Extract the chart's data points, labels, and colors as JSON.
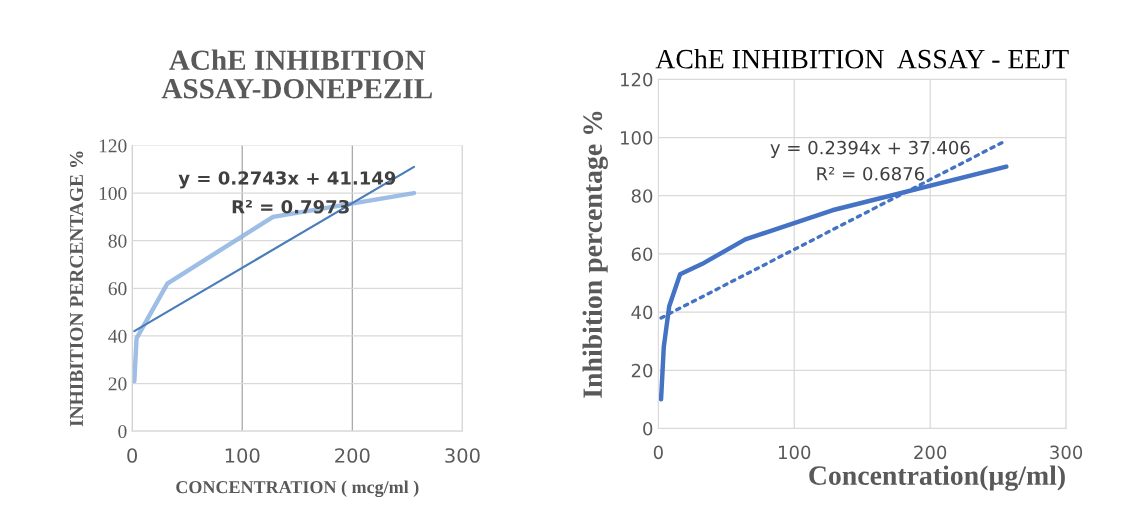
{
  "chart_data": [
    {
      "type": "line",
      "title": "AChE INHIBITION\nASSAY-DONEPEZIL",
      "xlabel": "CONCENTRATION ( mcg/ml )",
      "ylabel": "INHIBITION PERCENTAGE %",
      "xlim": [
        0,
        300
      ],
      "xticks": [
        0,
        100,
        200,
        300
      ],
      "ylim": [
        0,
        120
      ],
      "yticks": [
        0,
        20,
        40,
        60,
        80,
        100,
        120
      ],
      "grid": true,
      "legend": false,
      "series": [
        {
          "color": "#8db3e2",
          "x": [
            2,
            4,
            32,
            128,
            256
          ],
          "values": [
            21,
            39,
            62,
            90,
            100
          ]
        },
        {
          "color": "#4a7ebb",
          "line_style": "solid",
          "x": [
            2,
            256
          ],
          "values": [
            42,
            111
          ]
        }
      ],
      "annotations": [
        "y = 0.2743x + 41.149",
        "R² = 0.7973"
      ]
    },
    {
      "type": "line",
      "title": "AChE INHIBITION  ASSAY - EEJT",
      "xlabel": "Concentration(µg/ml)",
      "ylabel": "Inhibition percentage %",
      "xlim": [
        0,
        300
      ],
      "xticks": [
        0,
        100,
        200,
        300
      ],
      "ylim": [
        0,
        120
      ],
      "yticks": [
        0,
        20,
        40,
        60,
        80,
        100,
        120
      ],
      "grid": true,
      "legend": false,
      "series": [
        {
          "color": "#4472c4",
          "x": [
            2,
            4,
            8,
            16,
            32,
            64,
            128,
            256
          ],
          "values": [
            10,
            28,
            42,
            53,
            56.5,
            65,
            75,
            90
          ]
        },
        {
          "color": "#4472c4",
          "line_style": "dotted",
          "x": [
            2,
            256
          ],
          "values": [
            38,
            99
          ]
        }
      ],
      "annotations": [
        "y = 0.2394x + 37.406",
        "R² = 0.6876"
      ]
    }
  ]
}
